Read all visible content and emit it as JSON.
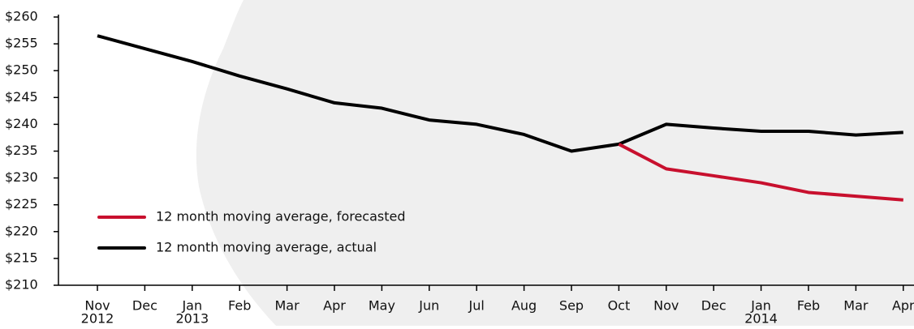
{
  "chart_data": {
    "type": "line",
    "categories": [
      "Nov",
      "Dec",
      "Jan",
      "Feb",
      "Mar",
      "Apr",
      "May",
      "Jun",
      "Jul",
      "Aug",
      "Sep",
      "Oct",
      "Nov",
      "Dec",
      "Jan",
      "Feb",
      "Mar",
      "Apr"
    ],
    "category_years": [
      "2012",
      null,
      "2013",
      null,
      null,
      null,
      null,
      null,
      null,
      null,
      null,
      null,
      null,
      null,
      "2014",
      null,
      null,
      null
    ],
    "series": [
      {
        "name": "12 month moving average, actual",
        "color": "#000000",
        "values": [
          256.5,
          254.1,
          251.7,
          249.0,
          246.6,
          244.0,
          243.0,
          240.8,
          240.0,
          238.1,
          235.0,
          236.3,
          240.0,
          239.3,
          238.7,
          238.7,
          238.0,
          238.5
        ]
      },
      {
        "name": "12 month moving average, forecasted",
        "color": "#c8102e",
        "values": [
          null,
          null,
          null,
          null,
          null,
          null,
          null,
          null,
          null,
          null,
          null,
          236.3,
          231.7,
          230.4,
          229.1,
          227.3,
          226.6,
          225.9
        ]
      }
    ],
    "ylim": [
      210,
      260
    ],
    "yticks": [
      {
        "value": 210,
        "label": "$210"
      },
      {
        "value": 215,
        "label": "$215"
      },
      {
        "value": 220,
        "label": "$220"
      },
      {
        "value": 225,
        "label": "$225"
      },
      {
        "value": 230,
        "label": "$230"
      },
      {
        "value": 235,
        "label": "$235"
      },
      {
        "value": 240,
        "label": "$240"
      },
      {
        "value": 245,
        "label": "$245"
      },
      {
        "value": 250,
        "label": "$250"
      },
      {
        "value": 255,
        "label": "$255"
      },
      {
        "value": 260,
        "label": "$260"
      }
    ],
    "legend_order": [
      1,
      0
    ]
  }
}
